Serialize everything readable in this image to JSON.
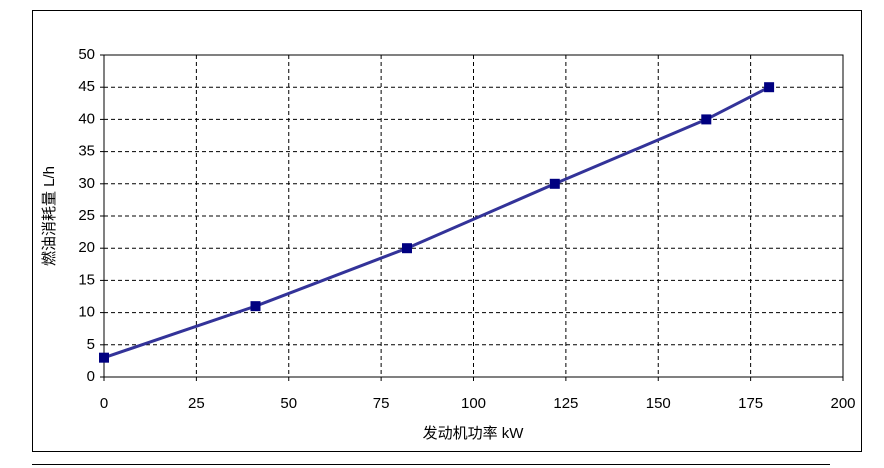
{
  "chart_data": {
    "type": "line",
    "x_label": "发动机功率 kW",
    "y_label": "燃油消耗量 L/h",
    "x": [
      0,
      41,
      82,
      122,
      163,
      180
    ],
    "series": [
      {
        "color": "#333399",
        "marker_color": "#000080",
        "values": [
          3,
          11,
          20,
          30,
          40,
          45
        ]
      }
    ],
    "xlim": [
      0,
      200
    ],
    "xticks": [
      0,
      25,
      50,
      75,
      100,
      125,
      150,
      175,
      200
    ],
    "ylim": [
      0,
      50
    ],
    "yticks": [
      0,
      5,
      10,
      15,
      20,
      25,
      30,
      35,
      40,
      45,
      50
    ],
    "grid": true
  }
}
